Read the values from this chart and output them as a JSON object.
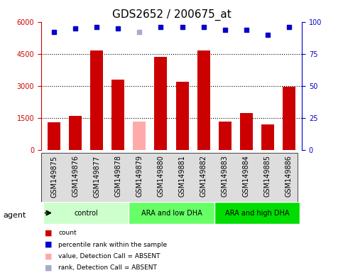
{
  "title": "GDS2652 / 200675_at",
  "samples": [
    "GSM149875",
    "GSM149876",
    "GSM149877",
    "GSM149878",
    "GSM149879",
    "GSM149880",
    "GSM149881",
    "GSM149882",
    "GSM149883",
    "GSM149884",
    "GSM149885",
    "GSM149886"
  ],
  "bar_values": [
    1300,
    1600,
    4650,
    3300,
    1350,
    4350,
    3200,
    4650,
    1350,
    1750,
    1200,
    2950
  ],
  "bar_colors": [
    "#cc0000",
    "#cc0000",
    "#cc0000",
    "#cc0000",
    "#ffaaaa",
    "#cc0000",
    "#cc0000",
    "#cc0000",
    "#cc0000",
    "#cc0000",
    "#cc0000",
    "#cc0000"
  ],
  "percentile_values": [
    92,
    95,
    96,
    95,
    92,
    96,
    96,
    96,
    94,
    94,
    90,
    96
  ],
  "percentile_colors": [
    "#0000cc",
    "#0000cc",
    "#0000cc",
    "#0000cc",
    "#aaaacc",
    "#0000cc",
    "#0000cc",
    "#0000cc",
    "#0000cc",
    "#0000cc",
    "#0000cc",
    "#0000cc"
  ],
  "ylim_left": [
    0,
    6000
  ],
  "ylim_right": [
    0,
    100
  ],
  "yticks_left": [
    0,
    1500,
    3000,
    4500,
    6000
  ],
  "yticks_right": [
    0,
    25,
    50,
    75,
    100
  ],
  "groups": [
    {
      "label": "control",
      "start": 0,
      "end": 4,
      "color": "#ccffcc"
    },
    {
      "label": "ARA and low DHA",
      "start": 4,
      "end": 8,
      "color": "#66ff66"
    },
    {
      "label": "ARA and high DHA",
      "start": 8,
      "end": 12,
      "color": "#00dd00"
    }
  ],
  "agent_label": "agent",
  "legend_items": [
    {
      "color": "#cc0000",
      "marker": "s",
      "label": "count"
    },
    {
      "color": "#0000cc",
      "marker": "s",
      "label": "percentile rank within the sample"
    },
    {
      "color": "#ffaaaa",
      "marker": "s",
      "label": "value, Detection Call = ABSENT"
    },
    {
      "color": "#aaaacc",
      "marker": "s",
      "label": "rank, Detection Call = ABSENT"
    }
  ],
  "title_fontsize": 11,
  "tick_fontsize": 7,
  "label_fontsize": 8,
  "bg_color": "#dddddd",
  "plot_bg": "#ffffff"
}
